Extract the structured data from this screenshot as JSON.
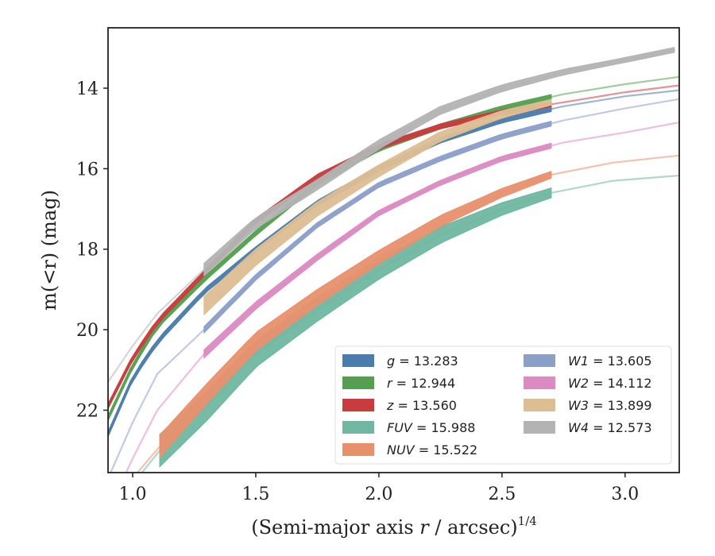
{
  "chart_data": {
    "type": "line",
    "xlabel": "(Semi-major axis r / arcsec)^1/4",
    "xlabel_parts": {
      "prefix": "(Semi-major axis ",
      "var": "r",
      "middle": " / arcsec)",
      "sup": "1/4"
    },
    "ylabel": "m(<r) (mag)",
    "xlim": [
      0.9,
      3.22
    ],
    "ylim": [
      23.55,
      12.5
    ],
    "y_inverted": true,
    "x_ticks": [
      1.0,
      1.5,
      2.0,
      2.5,
      3.0
    ],
    "x_tick_labels": [
      "1.0",
      "1.5",
      "2.0",
      "2.5",
      "3.0"
    ],
    "y_ticks": [
      14,
      16,
      18,
      20,
      22
    ],
    "y_tick_labels": [
      "14",
      "16",
      "18",
      "20",
      "22"
    ],
    "grid": false,
    "legend_position": "lower-right",
    "series": [
      {
        "name": "g = 13.283",
        "color": "#4c7cab",
        "band": 0.12,
        "x": [
          0.9,
          1.0,
          1.1,
          1.29,
          1.5,
          1.75,
          2.0,
          2.25,
          2.5,
          2.75,
          3.0,
          3.22
        ],
        "y": [
          22.6,
          21.2,
          20.3,
          19.05,
          18.0,
          16.85,
          16.0,
          15.3,
          14.8,
          14.45,
          14.2,
          14.05
        ],
        "solid_from": 0.9,
        "solid_to": 2.7
      },
      {
        "name": "r = 12.944",
        "color": "#55a050",
        "band": 0.12,
        "x": [
          0.9,
          1.0,
          1.1,
          1.29,
          1.5,
          1.75,
          2.0,
          2.25,
          2.5,
          2.75,
          3.0,
          3.22
        ],
        "y": [
          22.2,
          20.9,
          19.9,
          18.75,
          17.6,
          16.35,
          15.5,
          14.95,
          14.5,
          14.15,
          13.9,
          13.72
        ],
        "solid_from": 0.9,
        "solid_to": 2.7
      },
      {
        "name": "z = 13.560",
        "color": "#c83c3e",
        "band": 0.12,
        "x": [
          0.9,
          1.0,
          1.1,
          1.29,
          1.5,
          1.75,
          2.0,
          2.25,
          2.5,
          2.75,
          3.0,
          3.22
        ],
        "y": [
          21.9,
          20.7,
          19.8,
          18.6,
          17.3,
          16.2,
          15.45,
          14.95,
          14.6,
          14.35,
          14.1,
          13.93
        ],
        "solid_from": 0.9,
        "solid_to": 2.7
      },
      {
        "name": "FUV = 15.988",
        "color": "#6fb7a1",
        "band": 0.8,
        "x": [
          0.9,
          1.11,
          1.3,
          1.5,
          1.75,
          2.0,
          2.25,
          2.5,
          2.7,
          2.95,
          3.22
        ],
        "y": [
          24.6,
          23.0,
          21.9,
          20.6,
          19.5,
          18.5,
          17.65,
          17.0,
          16.6,
          16.3,
          16.17
        ],
        "solid_from": 1.11,
        "solid_to": 2.7
      },
      {
        "name": "NUV = 15.522",
        "color": "#e8906e",
        "band": 0.55,
        "x": [
          0.9,
          1.11,
          1.3,
          1.5,
          1.75,
          2.0,
          2.25,
          2.5,
          2.7,
          2.95,
          3.22
        ],
        "y": [
          24.4,
          22.9,
          21.6,
          20.3,
          19.2,
          18.2,
          17.3,
          16.6,
          16.15,
          15.85,
          15.67
        ],
        "solid_from": 1.11,
        "solid_to": 2.7
      },
      {
        "name": "W1 = 13.605",
        "color": "#8c9fc9",
        "band": 0.15,
        "x": [
          0.9,
          1.0,
          1.1,
          1.29,
          1.5,
          1.75,
          2.0,
          2.25,
          2.5,
          2.75,
          3.0,
          3.22
        ],
        "y": [
          23.7,
          22.3,
          21.1,
          20.0,
          18.7,
          17.4,
          16.4,
          15.75,
          15.2,
          14.8,
          14.5,
          14.27
        ],
        "solid_from": 1.29,
        "solid_to": 2.7
      },
      {
        "name": "W2 = 14.112",
        "color": "#db8bc1",
        "band": 0.2,
        "x": [
          0.9,
          1.0,
          1.1,
          1.29,
          1.5,
          1.75,
          2.0,
          2.25,
          2.5,
          2.75,
          3.0,
          3.22
        ],
        "y": [
          24.5,
          23.2,
          22.0,
          20.6,
          19.4,
          18.2,
          17.1,
          16.35,
          15.75,
          15.35,
          15.1,
          14.85
        ],
        "solid_from": 1.29,
        "solid_to": 2.7
      },
      {
        "name": "W3 = 13.899",
        "color": "#ddbe94",
        "band": 0.45,
        "x": [
          1.29,
          1.5,
          1.75,
          2.0,
          2.25,
          2.5,
          2.7
        ],
        "y": [
          19.4,
          18.2,
          17.0,
          16.05,
          15.2,
          14.65,
          14.35
        ],
        "solid_from": 1.29,
        "solid_to": 2.7
      },
      {
        "name": "W4 = 12.573",
        "color": "#b3b3b3",
        "band": 0.3,
        "x": [
          0.9,
          1.0,
          1.1,
          1.29,
          1.5,
          1.75,
          2.0,
          2.25,
          2.5,
          2.75,
          3.0,
          3.2
        ],
        "y": [
          21.3,
          20.4,
          19.6,
          18.5,
          17.35,
          16.4,
          15.4,
          14.55,
          14.0,
          13.6,
          13.3,
          13.05
        ],
        "solid_from": 1.29,
        "solid_to": 3.2
      }
    ]
  }
}
